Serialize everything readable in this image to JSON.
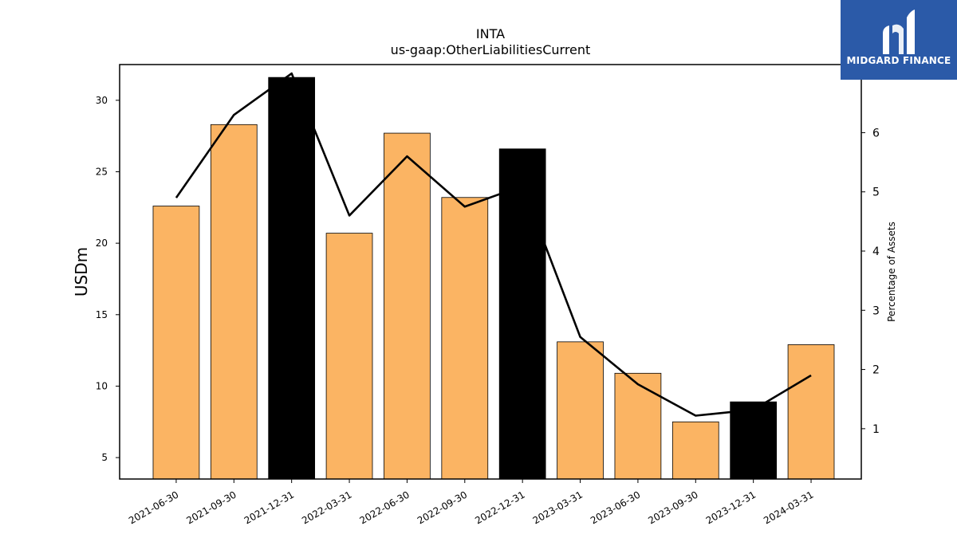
{
  "chart_data": {
    "type": "bar",
    "title": "INTA",
    "subtitle": "us-gaap:OtherLiabilitiesCurrent",
    "ylabel": "USDm",
    "y2label": "Percentage of Assets",
    "categories": [
      "2021-06-30",
      "2021-09-30",
      "2021-12-31",
      "2022-03-31",
      "2022-06-30",
      "2022-09-30",
      "2022-12-31",
      "2023-03-31",
      "2023-06-30",
      "2023-09-30",
      "2023-12-31",
      "2024-03-31"
    ],
    "series": [
      {
        "values": [
          22.6,
          28.3,
          31.6,
          20.7,
          27.7,
          23.2,
          26.6,
          13.1,
          10.9,
          7.5,
          8.9,
          12.9
        ],
        "colors": [
          "#fbb463",
          "#fbb463",
          "#000000",
          "#fbb463",
          "#fbb463",
          "#fbb463",
          "#000000",
          "#fbb463",
          "#fbb463",
          "#fbb463",
          "#000000",
          "#fbb463"
        ]
      },
      {
        "values": [
          4.9,
          6.3,
          7.0,
          4.6,
          5.6,
          4.75,
          5.1,
          2.55,
          1.75,
          1.22,
          1.32,
          1.9
        ],
        "axis": "right",
        "color": "#000000"
      }
    ],
    "ylim": [
      3.5,
      32.5
    ],
    "y2lim": [
      0.15,
      7.15
    ],
    "yticks": [
      5,
      10,
      15,
      20,
      25,
      30
    ],
    "y2ticks": [
      1,
      2,
      3,
      4,
      5,
      6
    ],
    "grid": false
  },
  "logo": {
    "text": "MIDGARD FINANCE",
    "color": "#2b5aa8"
  }
}
